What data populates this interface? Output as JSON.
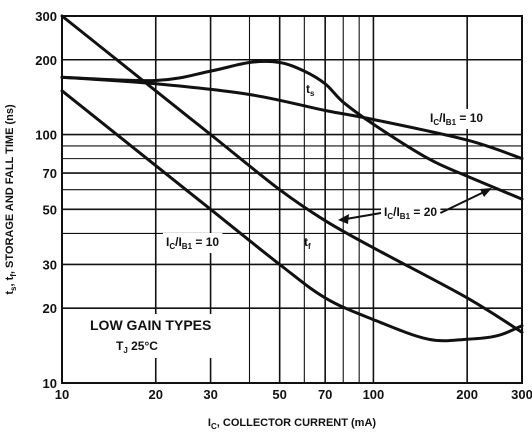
{
  "chart_data": {
    "type": "line",
    "xlabel": "I_C, COLLECTOR CURRENT (mA)",
    "ylabel": "t_s, t_f, STORAGE AND FALL TIME (ns)",
    "x_scale": "log",
    "y_scale": "log",
    "xlim": [
      10,
      300
    ],
    "ylim": [
      10,
      300
    ],
    "x_ticks": [
      10,
      20,
      30,
      50,
      70,
      100,
      200,
      300
    ],
    "y_ticks": [
      10,
      20,
      30,
      50,
      70,
      100,
      200,
      300
    ],
    "x_tick_labels": [
      "10",
      "20",
      "30",
      "50",
      "70",
      "100",
      "200",
      "300"
    ],
    "y_tick_labels": [
      "10",
      "20",
      "30",
      "50",
      "70",
      "100",
      "200",
      "300"
    ],
    "grid": true,
    "series": [
      {
        "name": "t_s, I_C/I_B1 = 10",
        "x": [
          10,
          20,
          40,
          70,
          100,
          200,
          300
        ],
        "y": [
          170,
          160,
          145,
          125,
          115,
          95,
          80
        ]
      },
      {
        "name": "t_s, I_C/I_B1 = 20",
        "x": [
          10,
          20,
          30,
          40,
          50,
          60,
          70,
          80,
          100,
          150,
          200,
          300
        ],
        "y": [
          170,
          165,
          180,
          195,
          195,
          180,
          160,
          135,
          110,
          80,
          68,
          55
        ]
      },
      {
        "name": "t_f, I_C/I_B1 = 10",
        "x": [
          10,
          20,
          30,
          50,
          70,
          100,
          150,
          200,
          250,
          300
        ],
        "y": [
          150,
          75,
          50,
          30,
          22,
          18,
          15,
          15,
          15.5,
          17
        ]
      },
      {
        "name": "t_f, I_C/I_B1 = 20",
        "x": [
          10,
          20,
          30,
          50,
          70,
          100,
          200,
          300
        ],
        "y": [
          300,
          150,
          100,
          60,
          45,
          35,
          22,
          16
        ]
      }
    ],
    "annotations": {
      "ts_label": "t_s",
      "tf_label": "t_f",
      "ratio10_right": "I_C/I_B1 = 10",
      "ratio20": "I_C/I_B1 = 20",
      "ratio10_left": "I_C/I_B1 = 10",
      "gain_types": "LOW GAIN TYPES",
      "temperature": "T_J   25°C"
    }
  },
  "colors": {
    "curve": "#111111",
    "grid": "#111111",
    "background": "#ffffff"
  }
}
